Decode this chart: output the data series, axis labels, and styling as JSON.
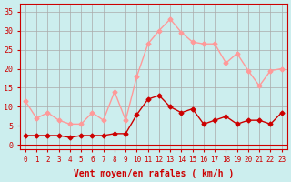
{
  "x": [
    0,
    1,
    2,
    3,
    4,
    5,
    6,
    7,
    8,
    9,
    10,
    11,
    12,
    13,
    14,
    15,
    16,
    17,
    18,
    19,
    20,
    21,
    22,
    23
  ],
  "wind_avg": [
    2.5,
    2.5,
    2.5,
    2.5,
    2.0,
    2.5,
    2.5,
    2.5,
    3.0,
    3.0,
    8.0,
    12.0,
    13.0,
    10.0,
    8.5,
    9.5,
    5.5,
    6.5,
    7.5,
    5.5,
    6.5,
    6.5,
    5.5,
    8.5
  ],
  "wind_gust": [
    11.5,
    7.0,
    8.5,
    6.5,
    5.5,
    5.5,
    8.5,
    6.5,
    14.0,
    6.5,
    18.0,
    26.5,
    30.0,
    33.0,
    29.5,
    27.0,
    26.5,
    26.5,
    21.5,
    24.0,
    19.5,
    15.5,
    19.5,
    20.0
  ],
  "avg_color": "#cc0000",
  "gust_color": "#ff9999",
  "bg_color": "#cceeee",
  "grid_color": "#aaaaaa",
  "xlabel": "Vent moyen/en rafales ( km/h )",
  "xlabel_color": "#cc0000",
  "tick_color": "#cc0000",
  "ylim": [
    -1,
    37
  ],
  "yticks": [
    0,
    5,
    10,
    15,
    20,
    25,
    30,
    35
  ],
  "xticks": [
    0,
    1,
    2,
    3,
    4,
    5,
    6,
    7,
    8,
    9,
    10,
    11,
    12,
    13,
    14,
    15,
    16,
    17,
    18,
    19,
    20,
    21,
    22,
    23
  ]
}
